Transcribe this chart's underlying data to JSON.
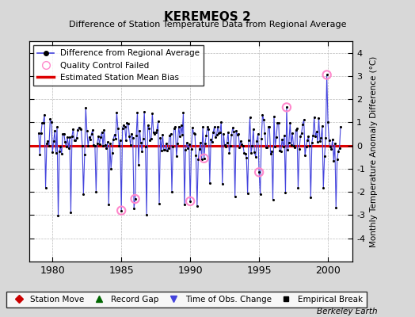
{
  "title": "KEREMEOS 2",
  "subtitle": "Difference of Station Temperature Data from Regional Average",
  "ylabel": "Monthly Temperature Anomaly Difference (°C)",
  "xlabel_years": [
    1980,
    1985,
    1990,
    1995,
    2000
  ],
  "xlim": [
    1978.3,
    2001.8
  ],
  "ylim": [
    -5,
    4.5
  ],
  "yticks": [
    -4,
    -3,
    -2,
    -1,
    0,
    1,
    2,
    3,
    4
  ],
  "bias_value": -0.02,
  "background_color": "#d8d8d8",
  "plot_bg_color": "#ffffff",
  "grid_color": "#bbbbbb",
  "line_color": "#4444dd",
  "bias_color": "#dd0000",
  "qc_color": "#ff88cc",
  "watermark": "Berkeley Earth",
  "seed": 17,
  "num_points": 264,
  "start_year": 1979.0
}
